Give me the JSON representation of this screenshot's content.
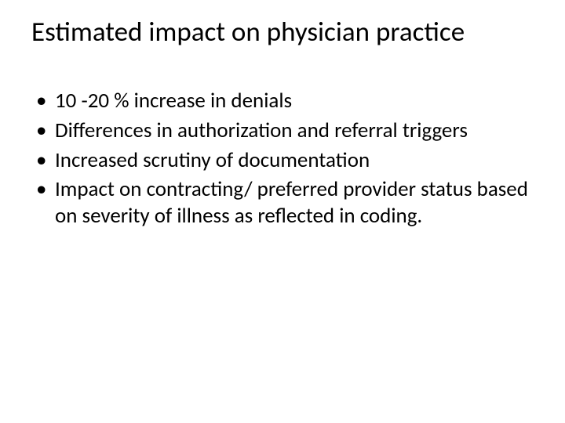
{
  "slide": {
    "title": "Estimated impact on physician practice",
    "title_fontsize": 35,
    "title_color": "#000000",
    "bullets": [
      "10 -20 % increase in denials",
      "Differences in authorization and referral triggers",
      "Increased scrutiny of documentation",
      "Impact on contracting/ preferred provider status based on severity of illness as reflected in coding."
    ],
    "bullet_fontsize": 27,
    "bullet_color": "#000000",
    "background_color": "#ffffff",
    "font_family": "Calibri"
  }
}
